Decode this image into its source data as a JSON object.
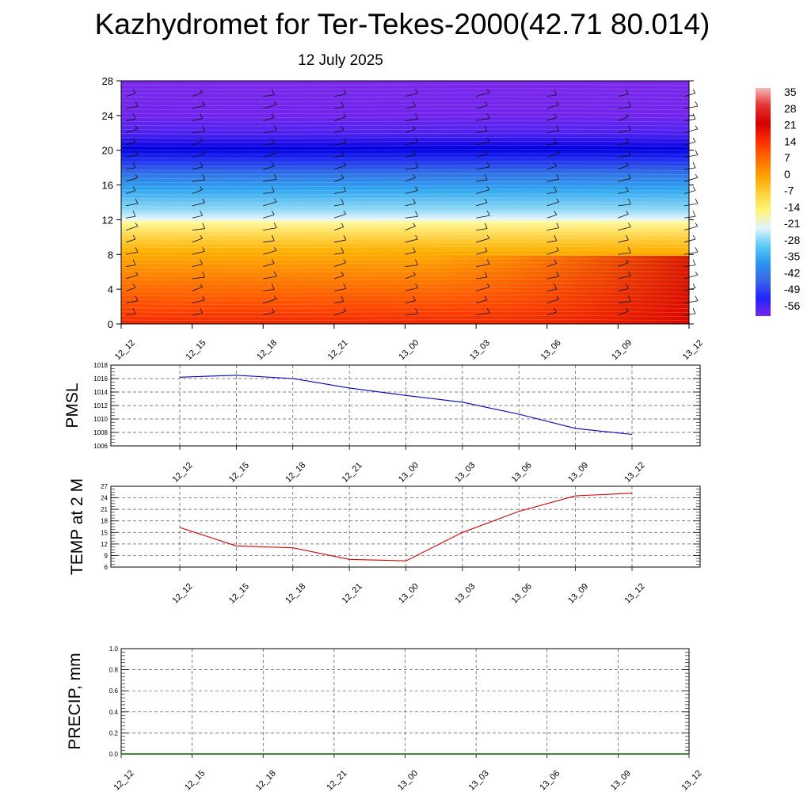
{
  "title": "Kazhydromet for Ter-Tekes-2000(42.71 80.014)",
  "date": "12 July 2025",
  "colorbar": {
    "labels": [
      "35",
      "28",
      "21",
      "14",
      "7",
      "0",
      "-7",
      "-14",
      "-21",
      "-28",
      "-35",
      "-42",
      "-49",
      "-56"
    ],
    "colors": [
      "#f6b8b8",
      "#e63232",
      "#d20000",
      "#ff2a00",
      "#ff6a00",
      "#ffa000",
      "#ffd23c",
      "#fff57a",
      "#e0f4ff",
      "#5ccaf5",
      "#2a96ee",
      "#3a64e6",
      "#2222ff",
      "#7a28e8"
    ]
  },
  "chart_data": [
    {
      "type": "heatmap",
      "name": "cross-section",
      "x_tick_labels": [
        "12_12",
        "12_15",
        "12_18",
        "12_21",
        "13_00",
        "13_03",
        "13_06",
        "13_09",
        "13_12"
      ],
      "y_ticks": [
        0,
        4,
        8,
        12,
        16,
        20,
        24,
        28
      ],
      "ylim": [
        0,
        28
      ],
      "fill_min": -56,
      "fill_max": 35,
      "wind_barbs": true
    },
    {
      "type": "line",
      "name": "pmsl",
      "ylabel": "PMSL",
      "x_tick_labels": [
        "12_12",
        "12_15",
        "12_18",
        "12_21",
        "13_00",
        "13_03",
        "13_06",
        "13_09",
        "13_12"
      ],
      "y_ticks": [
        1006,
        1008,
        1010,
        1012,
        1014,
        1016,
        1018
      ],
      "ylim": [
        1006,
        1018
      ],
      "line_color": "#0000cc",
      "values": [
        1016.2,
        1016.5,
        1016.0,
        1014.6,
        1013.5,
        1012.5,
        1010.7,
        1008.6,
        1007.7
      ]
    },
    {
      "type": "line",
      "name": "temp",
      "ylabel": "TEMP at 2 M",
      "x_tick_labels": [
        "12_12",
        "12_15",
        "12_18",
        "12_21",
        "13_00",
        "13_03",
        "13_06",
        "13_09",
        "13_12"
      ],
      "y_ticks": [
        6,
        9,
        12,
        15,
        18,
        21,
        24,
        27
      ],
      "ylim": [
        6,
        27
      ],
      "line_color": "#dd0000",
      "values": [
        16.3,
        11.5,
        11.0,
        8.0,
        7.6,
        15.0,
        20.5,
        24.5,
        25.2
      ]
    },
    {
      "type": "line",
      "name": "precip",
      "ylabel": "PRECIP, mm",
      "x_tick_labels": [
        "12_12",
        "12_15",
        "12_18",
        "12_21",
        "13_00",
        "13_03",
        "13_06",
        "13_09",
        "13_12"
      ],
      "y_ticks": [
        "0.0",
        "0.2",
        "0.4",
        "0.6",
        "0.8",
        "1.0"
      ],
      "ylim": [
        0,
        1
      ],
      "line_color": "#006400",
      "values": [
        0,
        0,
        0,
        0,
        0,
        0,
        0,
        0,
        0
      ]
    }
  ]
}
